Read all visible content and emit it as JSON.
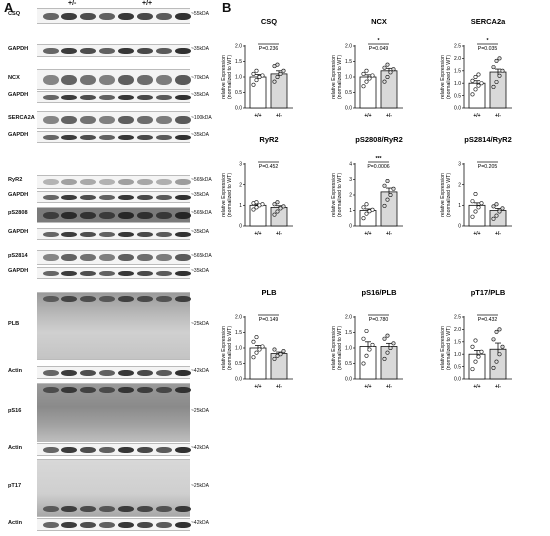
{
  "panels": {
    "a": "A",
    "b": "B"
  },
  "genotype_header": {
    "left": "+/-",
    "right": "+/+"
  },
  "blots": [
    {
      "label": "CSQ",
      "size": "~55kDA",
      "y": 8,
      "h": 14,
      "tone": "dark"
    },
    {
      "label": "GAPDH",
      "size": "~35kDA",
      "y": 44,
      "h": 11,
      "tone": "dark"
    },
    {
      "label": "NCX",
      "size": "~70kDA",
      "y": 69,
      "h": 19,
      "tone": "mid"
    },
    {
      "label": "GAPDH",
      "size": "~35kDA",
      "y": 91,
      "h": 10,
      "tone": "dark"
    },
    {
      "label": "SERCA2A",
      "size": "~100kDA",
      "y": 111,
      "h": 16,
      "tone": "mid"
    },
    {
      "label": "GAPDH",
      "size": "~35kDA",
      "y": 131,
      "h": 10,
      "tone": "dark"
    },
    {
      "label": "RyR2",
      "size": "~565kDA",
      "y": 175,
      "h": 12,
      "tone": "light"
    },
    {
      "label": "GAPDH",
      "size": "~35kDA",
      "y": 191,
      "h": 10,
      "tone": "dark"
    },
    {
      "label": "pS2808",
      "size": "~565kDA",
      "y": 207,
      "h": 14,
      "tone": "bg"
    },
    {
      "label": "GAPDH",
      "size": "~35kDA",
      "y": 228,
      "h": 10,
      "tone": "dark"
    },
    {
      "label": "pS2814",
      "size": "~565kDA",
      "y": 250,
      "h": 13,
      "tone": "mid"
    },
    {
      "label": "GAPDH",
      "size": "~35kDA",
      "y": 267,
      "h": 10,
      "tone": "dark"
    },
    {
      "label": "PLB",
      "size": "~25kDA",
      "y": 292,
      "h": 66,
      "tone": "smear"
    },
    {
      "label": "Actin",
      "size": "~42kDA",
      "y": 366,
      "h": 11,
      "tone": "dark"
    },
    {
      "label": "pS16",
      "size": "~25kDA",
      "y": 383,
      "h": 57,
      "tone": "smear2"
    },
    {
      "label": "Actin",
      "size": "~42kDA",
      "y": 443,
      "h": 11,
      "tone": "dark"
    },
    {
      "label": "pT17",
      "size": "~25kDA",
      "y": 459,
      "h": 56,
      "tone": "smear3"
    },
    {
      "label": "Actin",
      "size": "~42kDA",
      "y": 518,
      "h": 11,
      "tone": "dark"
    }
  ],
  "common": {
    "ylabel1": "relative Expression",
    "ylabel2": "(normalized to WT)",
    "xcats": [
      "+/+",
      "+/-"
    ]
  },
  "chart_data": [
    {
      "type": "bar",
      "title": "CSQ",
      "categories": [
        "+/+",
        "+/-"
      ],
      "values": [
        1.0,
        1.1
      ],
      "errors": [
        0.08,
        0.1
      ],
      "ylim": [
        0,
        2.0
      ],
      "yticks": [
        "0.0",
        "0.5",
        "1.0",
        "1.5",
        "2.0"
      ],
      "significance": "",
      "pvalue": "P=0.236",
      "points": [
        [
          0.75,
          0.9,
          1.0,
          1.05,
          1.1,
          1.2
        ],
        [
          0.85,
          1.0,
          1.1,
          1.2,
          1.35,
          1.4
        ]
      ]
    },
    {
      "type": "bar",
      "title": "NCX",
      "categories": [
        "+/+",
        "+/-"
      ],
      "values": [
        1.0,
        1.2
      ],
      "errors": [
        0.07,
        0.08
      ],
      "ylim": [
        0,
        2.0
      ],
      "yticks": [
        "0.0",
        "0.5",
        "1.0",
        "1.5",
        "2.0"
      ],
      "significance": "*",
      "pvalue": "P=0.049",
      "points": [
        [
          0.7,
          0.85,
          0.95,
          1.05,
          1.1,
          1.2
        ],
        [
          0.85,
          1.0,
          1.15,
          1.25,
          1.3,
          1.4
        ]
      ]
    },
    {
      "type": "bar",
      "title": "SERCA2a",
      "categories": [
        "+/+",
        "+/-"
      ],
      "values": [
        1.0,
        1.45
      ],
      "errors": [
        0.1,
        0.12
      ],
      "ylim": [
        0,
        2.5
      ],
      "yticks": [
        "0.0",
        "0.5",
        "1.0",
        "1.5",
        "2.0",
        "2.5"
      ],
      "significance": "*",
      "pvalue": "P=0.035",
      "points": [
        [
          0.55,
          0.75,
          0.9,
          1.0,
          1.1,
          1.25,
          1.35
        ],
        [
          0.85,
          1.05,
          1.3,
          1.5,
          1.65,
          1.9,
          2.0
        ]
      ]
    },
    {
      "type": "bar",
      "title": "RyR2",
      "categories": [
        "+/+",
        "+/-"
      ],
      "values": [
        1.0,
        0.9
      ],
      "errors": [
        0.05,
        0.08
      ],
      "ylim": [
        0,
        3
      ],
      "yticks": [
        "0",
        "1",
        "2",
        "3"
      ],
      "significance": "",
      "pvalue": "P=0.452",
      "points": [
        [
          0.8,
          0.9,
          1.0,
          1.05,
          1.1,
          1.15
        ],
        [
          0.55,
          0.7,
          0.85,
          0.95,
          1.05,
          1.15
        ]
      ]
    },
    {
      "type": "bar",
      "title": "pS2808/RyR2",
      "categories": [
        "+/+",
        "+/-"
      ],
      "values": [
        1.0,
        2.2
      ],
      "errors": [
        0.1,
        0.25
      ],
      "ylim": [
        0,
        4
      ],
      "yticks": [
        "0",
        "1",
        "2",
        "3",
        "4"
      ],
      "significance": "***",
      "pvalue": "P=0.0006",
      "points": [
        [
          0.5,
          0.8,
          0.95,
          1.05,
          1.2,
          1.4
        ],
        [
          1.3,
          1.7,
          2.0,
          2.4,
          2.6,
          2.9
        ]
      ]
    },
    {
      "type": "bar",
      "title": "pS2814/RyR2",
      "categories": [
        "+/+",
        "+/-"
      ],
      "values": [
        1.0,
        0.75
      ],
      "errors": [
        0.12,
        0.1
      ],
      "ylim": [
        0,
        3
      ],
      "yticks": [
        "0",
        "1",
        "2",
        "3"
      ],
      "significance": "",
      "pvalue": "P=0.205",
      "points": [
        [
          0.45,
          0.7,
          0.9,
          1.1,
          1.2,
          1.55
        ],
        [
          0.35,
          0.5,
          0.7,
          0.85,
          0.95,
          1.05
        ]
      ]
    },
    {
      "type": "bar",
      "title": "PLB",
      "categories": [
        "+/+",
        "+/-"
      ],
      "values": [
        1.0,
        0.82
      ],
      "errors": [
        0.08,
        0.05
      ],
      "ylim": [
        0,
        2.0
      ],
      "yticks": [
        "0.0",
        "0.5",
        "1.0",
        "1.5",
        "2.0"
      ],
      "significance": "",
      "pvalue": "P=0.149",
      "points": [
        [
          0.7,
          0.85,
          0.95,
          1.05,
          1.2,
          1.35
        ],
        [
          0.65,
          0.75,
          0.8,
          0.9,
          0.95
        ]
      ]
    },
    {
      "type": "bar",
      "title": "pS16/PLB",
      "categories": [
        "+/+",
        "+/-"
      ],
      "values": [
        1.05,
        1.05
      ],
      "errors": [
        0.15,
        0.1
      ],
      "ylim": [
        0,
        2.0
      ],
      "yticks": [
        "0.0",
        "0.5",
        "1.0",
        "1.5",
        "2.0"
      ],
      "significance": "",
      "pvalue": "P=0.780",
      "points": [
        [
          0.5,
          0.75,
          0.95,
          1.1,
          1.3,
          1.55
        ],
        [
          0.65,
          0.85,
          1.0,
          1.15,
          1.3,
          1.4
        ]
      ]
    },
    {
      "type": "bar",
      "title": "pT17/PLB",
      "categories": [
        "+/+",
        "+/-"
      ],
      "values": [
        1.0,
        1.2
      ],
      "errors": [
        0.15,
        0.25
      ],
      "ylim": [
        0,
        2.5
      ],
      "yticks": [
        "0.0",
        "0.5",
        "1.0",
        "1.5",
        "2.0",
        "2.5"
      ],
      "significance": "",
      "pvalue": "P=0.432",
      "points": [
        [
          0.4,
          0.7,
          0.9,
          1.1,
          1.3,
          1.55
        ],
        [
          0.45,
          0.7,
          1.0,
          1.3,
          1.6,
          1.9,
          2.0
        ]
      ]
    }
  ]
}
